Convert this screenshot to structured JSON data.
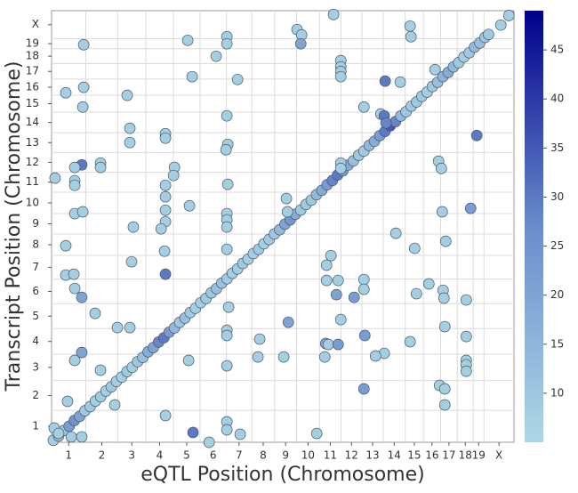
{
  "chart_data": {
    "type": "scatter",
    "xlabel": "eQTL Position (Chromosome)",
    "ylabel": "Transcript Position (Chromosome)",
    "xlim": [
      0,
      2635
    ],
    "ylim": [
      0,
      2635
    ],
    "grid_lines": [
      195,
      377,
      537,
      694,
      846,
      996,
      1141,
      1271,
      1396,
      1527,
      1649,
      1769,
      1890,
      2015,
      2119,
      2217,
      2312,
      2403,
      2464
    ],
    "xticks": [
      {
        "value": 97.5,
        "label": "1"
      },
      {
        "value": 286,
        "label": "2"
      },
      {
        "value": 457,
        "label": "3"
      },
      {
        "value": 615.5,
        "label": "4"
      },
      {
        "value": 770,
        "label": "5"
      },
      {
        "value": 921,
        "label": "6"
      },
      {
        "value": 1068.5,
        "label": "7"
      },
      {
        "value": 1206,
        "label": "8"
      },
      {
        "value": 1333.5,
        "label": "9"
      },
      {
        "value": 1461.5,
        "label": "10"
      },
      {
        "value": 1588,
        "label": "11"
      },
      {
        "value": 1709,
        "label": "12"
      },
      {
        "value": 1829.5,
        "label": "13"
      },
      {
        "value": 1952.5,
        "label": "14"
      },
      {
        "value": 2067,
        "label": "15"
      },
      {
        "value": 2168,
        "label": "16"
      },
      {
        "value": 2264.5,
        "label": "17"
      },
      {
        "value": 2357.5,
        "label": "18"
      },
      {
        "value": 2433.5,
        "label": "19"
      },
      {
        "value": 2549.5,
        "label": "X"
      }
    ],
    "yticks": [
      {
        "value": 97.5,
        "label": "1"
      },
      {
        "value": 286,
        "label": "2"
      },
      {
        "value": 457,
        "label": "3"
      },
      {
        "value": 615.5,
        "label": "4"
      },
      {
        "value": 770,
        "label": "5"
      },
      {
        "value": 921,
        "label": "6"
      },
      {
        "value": 1068.5,
        "label": "7"
      },
      {
        "value": 1206,
        "label": "8"
      },
      {
        "value": 1333.5,
        "label": "9"
      },
      {
        "value": 1461.5,
        "label": "10"
      },
      {
        "value": 1588,
        "label": "11"
      },
      {
        "value": 1709,
        "label": "12"
      },
      {
        "value": 1829.5,
        "label": "13"
      },
      {
        "value": 1952.5,
        "label": "14"
      },
      {
        "value": 2067,
        "label": "15"
      },
      {
        "value": 2168,
        "label": "16"
      },
      {
        "value": 2264.5,
        "label": "17"
      },
      {
        "value": 2357.5,
        "label": "18"
      },
      {
        "value": 2433.5,
        "label": "19"
      },
      {
        "value": 2549.5,
        "label": "X"
      }
    ],
    "colorbar_lim": [
      5,
      49
    ],
    "colorbar_ticks": [
      10,
      15,
      20,
      25,
      30,
      35,
      40,
      45
    ],
    "colormap": [
      "#add8e6",
      "#6a8ccc",
      "#00008b"
    ],
    "points": [
      [
        10,
        12,
        8
      ],
      [
        40,
        38,
        12
      ],
      [
        70,
        72,
        10
      ],
      [
        100,
        98,
        22
      ],
      [
        130,
        133,
        25
      ],
      [
        160,
        158,
        20
      ],
      [
        190,
        192,
        10
      ],
      [
        220,
        218,
        9
      ],
      [
        250,
        252,
        8
      ],
      [
        280,
        278,
        9
      ],
      [
        310,
        313,
        8
      ],
      [
        340,
        338,
        9
      ],
      [
        370,
        372,
        8
      ],
      [
        400,
        398,
        8
      ],
      [
        430,
        432,
        9
      ],
      [
        460,
        458,
        8
      ],
      [
        490,
        492,
        10
      ],
      [
        520,
        518,
        12
      ],
      [
        550,
        552,
        18
      ],
      [
        580,
        578,
        20
      ],
      [
        610,
        612,
        28
      ],
      [
        640,
        638,
        30
      ],
      [
        670,
        672,
        22
      ],
      [
        700,
        698,
        14
      ],
      [
        730,
        732,
        10
      ],
      [
        760,
        758,
        12
      ],
      [
        790,
        792,
        9
      ],
      [
        820,
        818,
        8
      ],
      [
        850,
        852,
        8
      ],
      [
        880,
        878,
        9
      ],
      [
        910,
        912,
        10
      ],
      [
        940,
        938,
        12
      ],
      [
        970,
        972,
        11
      ],
      [
        1000,
        998,
        9
      ],
      [
        1030,
        1032,
        8
      ],
      [
        1060,
        1058,
        8
      ],
      [
        1090,
        1092,
        9
      ],
      [
        1120,
        1118,
        8
      ],
      [
        1150,
        1152,
        8
      ],
      [
        1180,
        1178,
        9
      ],
      [
        1210,
        1212,
        8
      ],
      [
        1240,
        1238,
        9
      ],
      [
        1270,
        1272,
        10
      ],
      [
        1300,
        1298,
        14
      ],
      [
        1330,
        1332,
        20
      ],
      [
        1360,
        1358,
        24
      ],
      [
        1390,
        1392,
        18
      ],
      [
        1420,
        1418,
        10
      ],
      [
        1450,
        1452,
        9
      ],
      [
        1480,
        1478,
        10
      ],
      [
        1510,
        1512,
        14
      ],
      [
        1540,
        1538,
        18
      ],
      [
        1570,
        1572,
        22
      ],
      [
        1600,
        1598,
        28
      ],
      [
        1630,
        1632,
        30
      ],
      [
        1660,
        1658,
        22
      ],
      [
        1690,
        1692,
        18
      ],
      [
        1720,
        1718,
        12
      ],
      [
        1750,
        1752,
        10
      ],
      [
        1780,
        1778,
        9
      ],
      [
        1810,
        1812,
        14
      ],
      [
        1840,
        1838,
        18
      ],
      [
        1870,
        1872,
        22
      ],
      [
        1900,
        1898,
        30
      ],
      [
        1930,
        1932,
        35
      ],
      [
        1960,
        1958,
        28
      ],
      [
        1990,
        1992,
        14
      ],
      [
        2020,
        2018,
        10
      ],
      [
        2050,
        2052,
        9
      ],
      [
        2080,
        2078,
        10
      ],
      [
        2110,
        2112,
        9
      ],
      [
        2140,
        2138,
        8
      ],
      [
        2170,
        2172,
        9
      ],
      [
        2200,
        2198,
        12
      ],
      [
        2230,
        2232,
        16
      ],
      [
        2260,
        2258,
        18
      ],
      [
        2290,
        2292,
        14
      ],
      [
        2320,
        2318,
        9
      ],
      [
        2350,
        2352,
        8
      ],
      [
        2380,
        2378,
        10
      ],
      [
        2410,
        2412,
        14
      ],
      [
        2440,
        2438,
        12
      ],
      [
        2470,
        2472,
        10
      ],
      [
        2490,
        2490,
        9
      ],
      [
        2560,
        2547,
        8
      ],
      [
        2606,
        2606,
        8
      ],
      [
        1607,
        2612,
        8
      ],
      [
        2043,
        2541,
        8
      ],
      [
        2048,
        2476,
        8
      ],
      [
        1399,
        2520,
        8
      ],
      [
        1425,
        2487,
        8
      ],
      [
        999,
        2476,
        8
      ],
      [
        999,
        2433,
        8
      ],
      [
        776,
        2454,
        8
      ],
      [
        183,
        2427,
        8
      ],
      [
        1420,
        2433,
        20
      ],
      [
        938,
        2357,
        8
      ],
      [
        801,
        2232,
        8
      ],
      [
        1648,
        2330,
        8
      ],
      [
        1648,
        2292,
        8
      ],
      [
        1648,
        2264,
        8
      ],
      [
        1648,
        2232,
        8
      ],
      [
        1060,
        2215,
        8
      ],
      [
        1901,
        2205,
        30
      ],
      [
        1987,
        2199,
        8
      ],
      [
        2185,
        2275,
        8
      ],
      [
        81,
        2134,
        8
      ],
      [
        183,
        2167,
        8
      ],
      [
        178,
        2047,
        8
      ],
      [
        431,
        2118,
        8
      ],
      [
        1780,
        2047,
        8
      ],
      [
        1876,
        2004,
        8
      ],
      [
        999,
        1993,
        8
      ],
      [
        1896,
        1993,
        30
      ],
      [
        1906,
        1949,
        28
      ],
      [
        649,
        1884,
        8
      ],
      [
        649,
        1857,
        8
      ],
      [
        446,
        1917,
        8
      ],
      [
        446,
        1830,
        8
      ],
      [
        1004,
        1819,
        8
      ],
      [
        2423,
        1873,
        30
      ],
      [
        994,
        1786,
        8
      ],
      [
        2205,
        1716,
        8
      ],
      [
        1648,
        1705,
        8
      ],
      [
        1648,
        1672,
        8
      ],
      [
        279,
        1705,
        8
      ],
      [
        279,
        1678,
        8
      ],
      [
        172,
        1694,
        30
      ],
      [
        2221,
        1672,
        8
      ],
      [
        700,
        1678,
        8
      ],
      [
        132,
        1678,
        8
      ],
      [
        695,
        1629,
        8
      ],
      [
        132,
        1597,
        8
      ],
      [
        132,
        1569,
        8
      ],
      [
        1004,
        1575,
        8
      ],
      [
        20,
        1613,
        8
      ],
      [
        649,
        1569,
        8
      ],
      [
        649,
        1499,
        8
      ],
      [
        1338,
        1488,
        8
      ],
      [
        649,
        1417,
        8
      ],
      [
        786,
        1444,
        8
      ],
      [
        132,
        1396,
        8
      ],
      [
        178,
        1407,
        8
      ],
      [
        649,
        1347,
        8
      ],
      [
        999,
        1396,
        8
      ],
      [
        999,
        1358,
        8
      ],
      [
        1344,
        1407,
        8
      ],
      [
        466,
        1314,
        8
      ],
      [
        624,
        1303,
        8
      ],
      [
        999,
        1314,
        8
      ],
      [
        1962,
        1276,
        8
      ],
      [
        2388,
        1428,
        22
      ],
      [
        2226,
        1407,
        8
      ],
      [
        81,
        1200,
        8
      ],
      [
        644,
        1167,
        8
      ],
      [
        456,
        1102,
        8
      ],
      [
        999,
        1178,
        8
      ],
      [
        1592,
        1140,
        8
      ],
      [
        2069,
        1184,
        8
      ],
      [
        2246,
        1227,
        8
      ],
      [
        1567,
        1081,
        8
      ],
      [
        81,
        1021,
        8
      ],
      [
        127,
        1026,
        8
      ],
      [
        649,
        1026,
        30
      ],
      [
        1567,
        988,
        8
      ],
      [
        132,
        939,
        8
      ],
      [
        172,
        885,
        20
      ],
      [
        1633,
        988,
        8
      ],
      [
        1623,
        901,
        20
      ],
      [
        1780,
        994,
        8
      ],
      [
        1780,
        934,
        8
      ],
      [
        2231,
        928,
        8
      ],
      [
        2150,
        967,
        8
      ],
      [
        248,
        787,
        8
      ],
      [
        1009,
        825,
        8
      ],
      [
        2236,
        880,
        8
      ],
      [
        2079,
        907,
        8
      ],
      [
        2363,
        869,
        8
      ],
      [
        1724,
        885,
        22
      ],
      [
        1648,
        749,
        8
      ],
      [
        2241,
        706,
        8
      ],
      [
        375,
        700,
        8
      ],
      [
        446,
        700,
        8
      ],
      [
        999,
        684,
        8
      ],
      [
        999,
        652,
        8
      ],
      [
        1186,
        630,
        8
      ],
      [
        1349,
        733,
        20
      ],
      [
        1562,
        603,
        18
      ],
      [
        1577,
        597,
        8
      ],
      [
        1633,
        597,
        22
      ],
      [
        1785,
        652,
        22
      ],
      [
        1896,
        543,
        8
      ],
      [
        2043,
        614,
        8
      ],
      [
        2363,
        646,
        8
      ],
      [
        132,
        500,
        8
      ],
      [
        172,
        548,
        20
      ],
      [
        781,
        500,
        8
      ],
      [
        1176,
        521,
        8
      ],
      [
        1323,
        521,
        8
      ],
      [
        1557,
        521,
        8
      ],
      [
        1846,
        527,
        8
      ],
      [
        2363,
        500,
        8
      ],
      [
        2363,
        473,
        8
      ],
      [
        2363,
        434,
        8
      ],
      [
        279,
        440,
        8
      ],
      [
        999,
        467,
        8
      ],
      [
        1780,
        326,
        22
      ],
      [
        2211,
        347,
        8
      ],
      [
        2241,
        326,
        8
      ],
      [
        91,
        250,
        8
      ],
      [
        360,
        228,
        8
      ],
      [
        2241,
        228,
        8
      ],
      [
        649,
        163,
        8
      ],
      [
        999,
        125,
        8
      ],
      [
        806,
        60,
        30
      ],
      [
        999,
        76,
        8
      ],
      [
        1075,
        49,
        8
      ],
      [
        898,
        0,
        8
      ],
      [
        1511,
        54,
        8
      ],
      [
        172,
        33,
        8
      ],
      [
        112,
        33,
        8
      ],
      [
        15,
        87,
        8
      ],
      [
        40,
        54,
        8
      ]
    ]
  }
}
